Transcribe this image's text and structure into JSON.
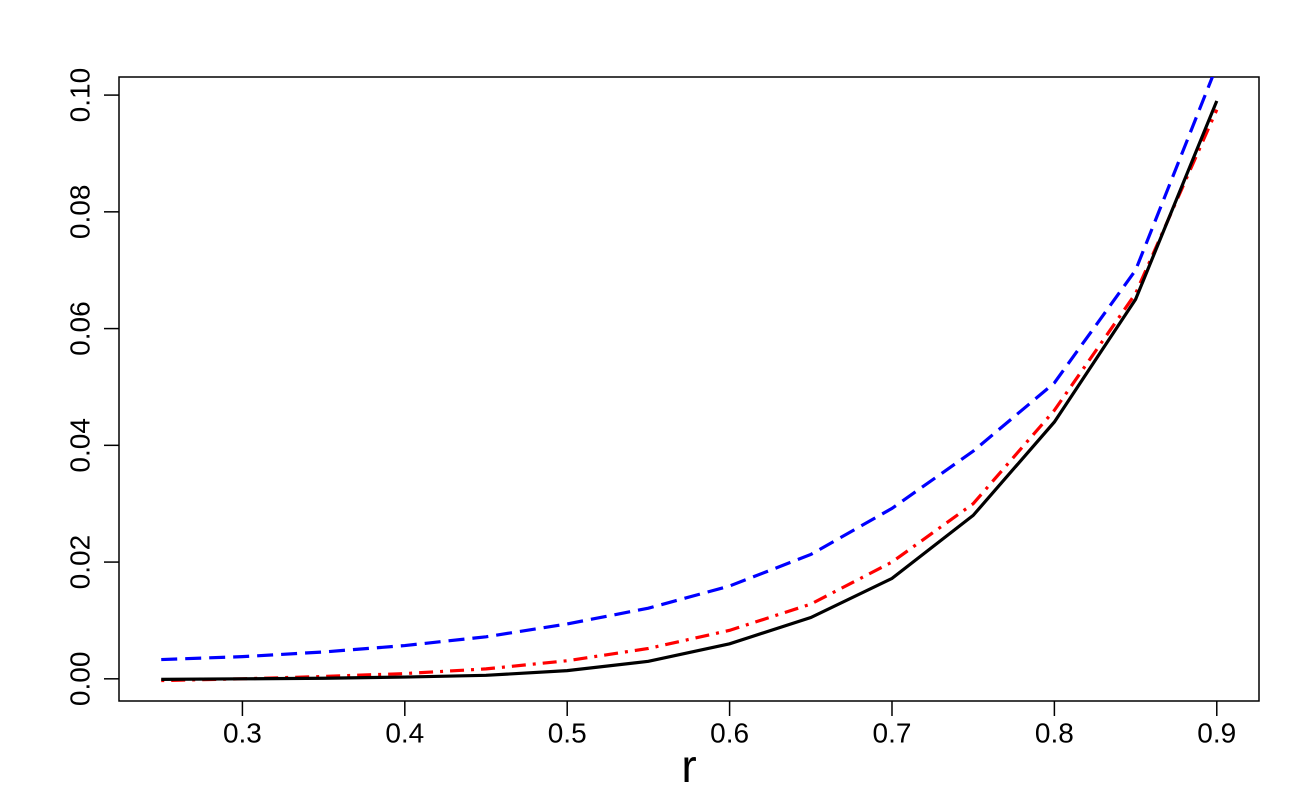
{
  "chart_data": {
    "type": "line",
    "x_label": "r",
    "x": [
      0.25,
      0.3,
      0.35,
      0.4,
      0.45,
      0.5,
      0.55,
      0.6,
      0.65,
      0.7,
      0.75,
      0.8,
      0.85,
      0.9
    ],
    "series": [
      {
        "color": "#0000ff",
        "dash": "dashed",
        "values": [
          0.0033,
          0.0038,
          0.0046,
          0.0057,
          0.0072,
          0.0094,
          0.0121,
          0.0159,
          0.0213,
          0.0292,
          0.039,
          0.0507,
          0.07,
          0.105
        ]
      },
      {
        "color": "#ff0000",
        "dash": "dotdash",
        "values": [
          -0.0003,
          0.0,
          0.0004,
          0.0009,
          0.0017,
          0.0031,
          0.0052,
          0.0083,
          0.0128,
          0.02,
          0.03,
          0.046,
          0.066,
          0.0975
        ]
      },
      {
        "color": "#000000",
        "dash": "solid",
        "values": [
          -0.0001,
          0.0,
          0.0001,
          0.0003,
          0.0006,
          0.0014,
          0.003,
          0.006,
          0.0105,
          0.0172,
          0.028,
          0.044,
          0.065,
          0.099
        ]
      }
    ],
    "xlim": [
      0.224,
      0.926
    ],
    "ylim": [
      -0.0038,
      0.1031
    ],
    "xticks": [
      0.3,
      0.4,
      0.5,
      0.6,
      0.7,
      0.8,
      0.9
    ],
    "yticks": [
      {
        "value": 0,
        "label": "0.00"
      },
      {
        "value": 0.02,
        "label": "0.02"
      },
      {
        "value": 0.04,
        "label": "0.04"
      },
      {
        "value": 0.06,
        "label": "0.06"
      },
      {
        "value": 0.08,
        "label": "0.08"
      },
      {
        "value": 0.1,
        "label": "0.10"
      }
    ],
    "grid": false
  }
}
